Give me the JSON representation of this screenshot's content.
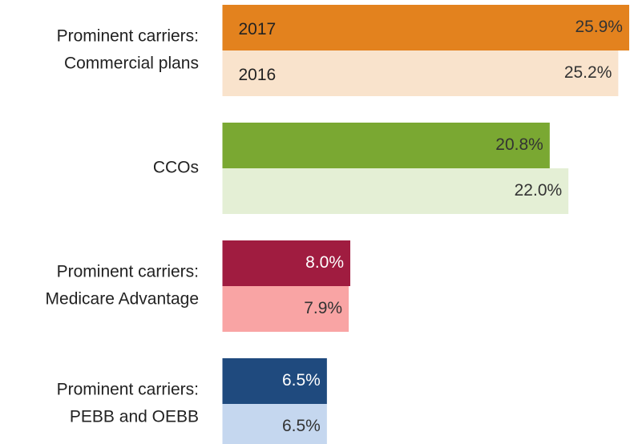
{
  "chart_data": {
    "type": "bar",
    "categories": [
      [
        "Prominent carriers:",
        "Commercial plans"
      ],
      [
        "CCOs"
      ],
      [
        "Prominent carriers:",
        "Medicare Advantage"
      ],
      [
        "Prominent carriers:",
        "PEBB and OEBB"
      ]
    ],
    "series": [
      {
        "name": "2017",
        "colors": [
          "#e3821e",
          "#7aa832",
          "#a01c40",
          "#1f4a7e"
        ],
        "values": [
          25.9,
          20.8,
          8.0,
          6.5
        ],
        "value_labels": [
          "25.9%",
          "20.8%",
          "8.0%",
          "6.5%"
        ]
      },
      {
        "name": "2016",
        "colors": [
          "#f9e3cc",
          "#e4efd5",
          "#f9a4a4",
          "#c5d7ef"
        ],
        "values": [
          25.2,
          22.0,
          7.9,
          6.5
        ],
        "value_labels": [
          "25.2%",
          "22.0%",
          "7.9%",
          "6.5%"
        ]
      }
    ]
  }
}
